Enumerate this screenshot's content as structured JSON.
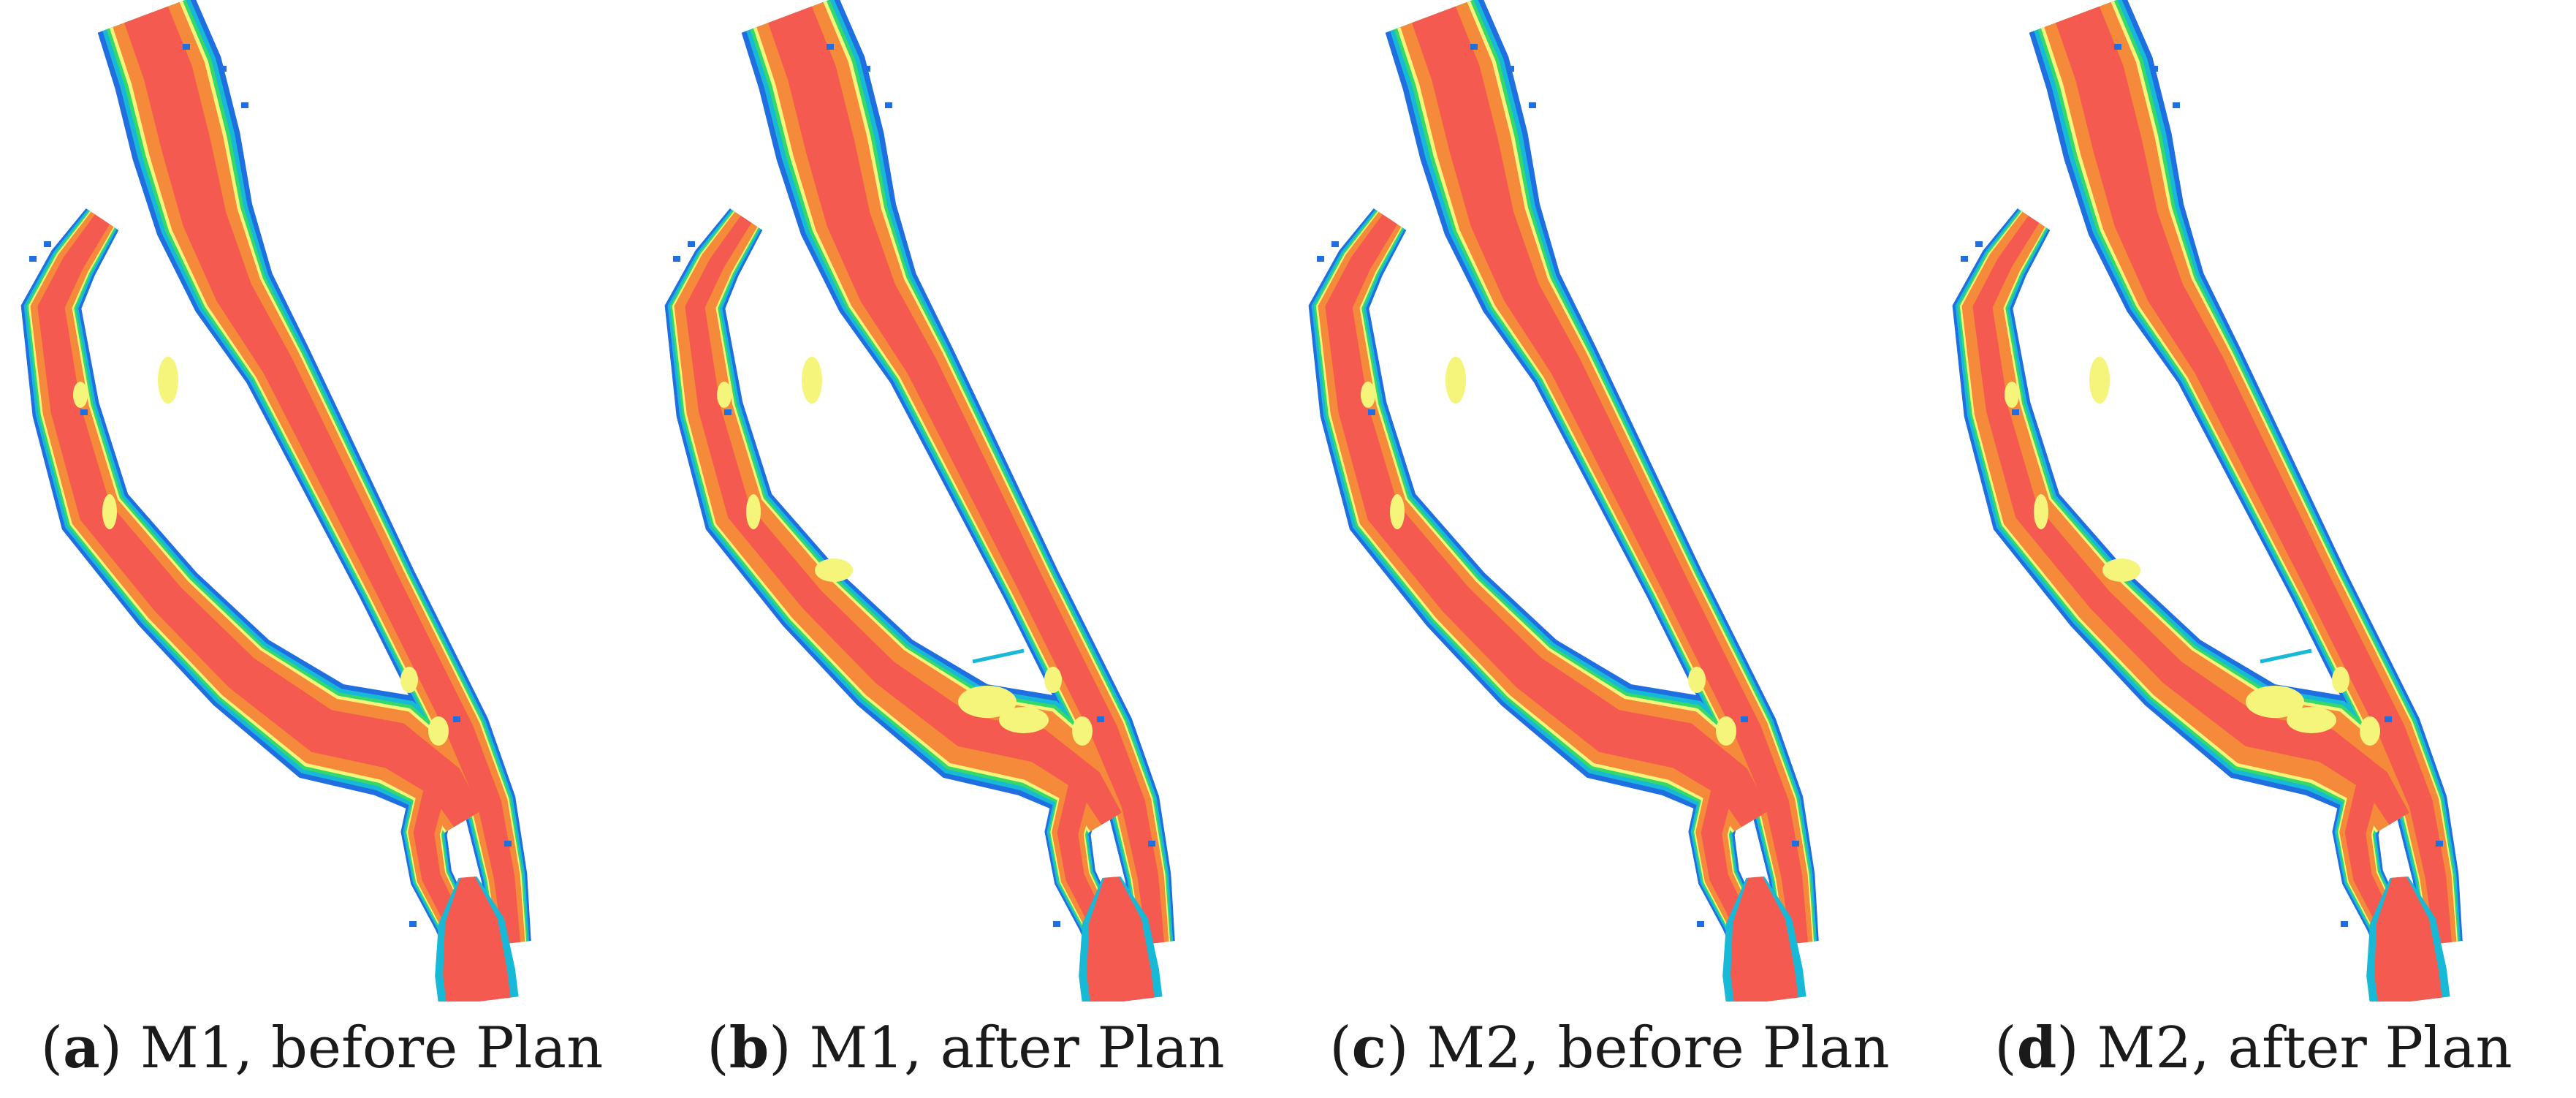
{
  "colors": {
    "very_low": "#1f6fe0",
    "low": "#18b9d6",
    "mid_low": "#35d96a",
    "mid": "#f4f57a",
    "mid_high": "#f58a3a",
    "high": "#f45a4f"
  },
  "panels": [
    {
      "letter": "a",
      "caption": "M1, before Plan",
      "variant": "before"
    },
    {
      "letter": "b",
      "caption": "M1, after Plan",
      "variant": "after"
    },
    {
      "letter": "c",
      "caption": "M2, before Plan",
      "variant": "before"
    },
    {
      "letter": "d",
      "caption": "M2, after Plan",
      "variant": "after"
    }
  ]
}
